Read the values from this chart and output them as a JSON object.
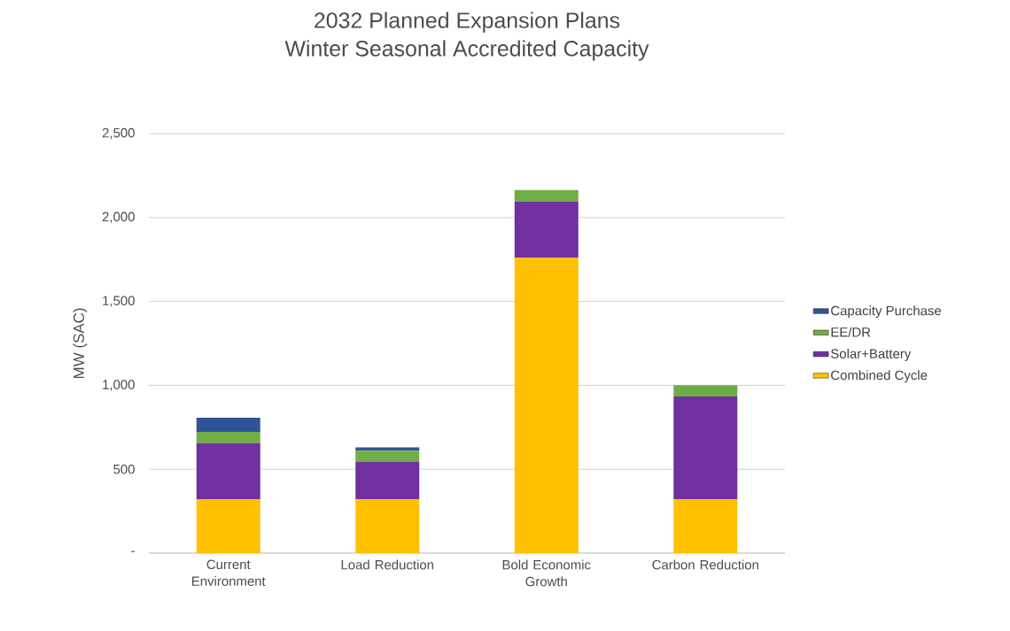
{
  "chart_data": {
    "type": "bar",
    "title": "2032 Planned Expansion Plans",
    "subtitle": "Winter Seasonal Accredited Capacity",
    "ylabel": "MW (SAC)",
    "categories": [
      "Current Environment",
      "Load Reduction",
      "Bold Economic Growth",
      "Carbon Reduction"
    ],
    "stacked": true,
    "series": [
      {
        "name": "Combined Cycle",
        "color": "#ffc000",
        "values": [
          320,
          320,
          1760,
          320
        ]
      },
      {
        "name": "Solar+Battery",
        "color": "#7030a0",
        "values": [
          335,
          223,
          334,
          614
        ]
      },
      {
        "name": "EE/DR",
        "color": "#70ad47",
        "values": [
          67,
          67,
          70,
          67
        ]
      },
      {
        "name": "Capacity Purchase",
        "color": "#2f5597",
        "values": [
          85,
          20,
          0,
          0
        ]
      }
    ],
    "ylim": [
      0,
      2500
    ],
    "yticks": [
      {
        "value": 0,
        "label": "-"
      },
      500,
      {
        "value": 1000,
        "label": "1,000"
      },
      {
        "value": 1500,
        "label": "1,500"
      },
      {
        "value": 2000,
        "label": "2,000"
      },
      {
        "value": 2500,
        "label": "2,500"
      }
    ],
    "grid": "y",
    "legend": "right"
  }
}
